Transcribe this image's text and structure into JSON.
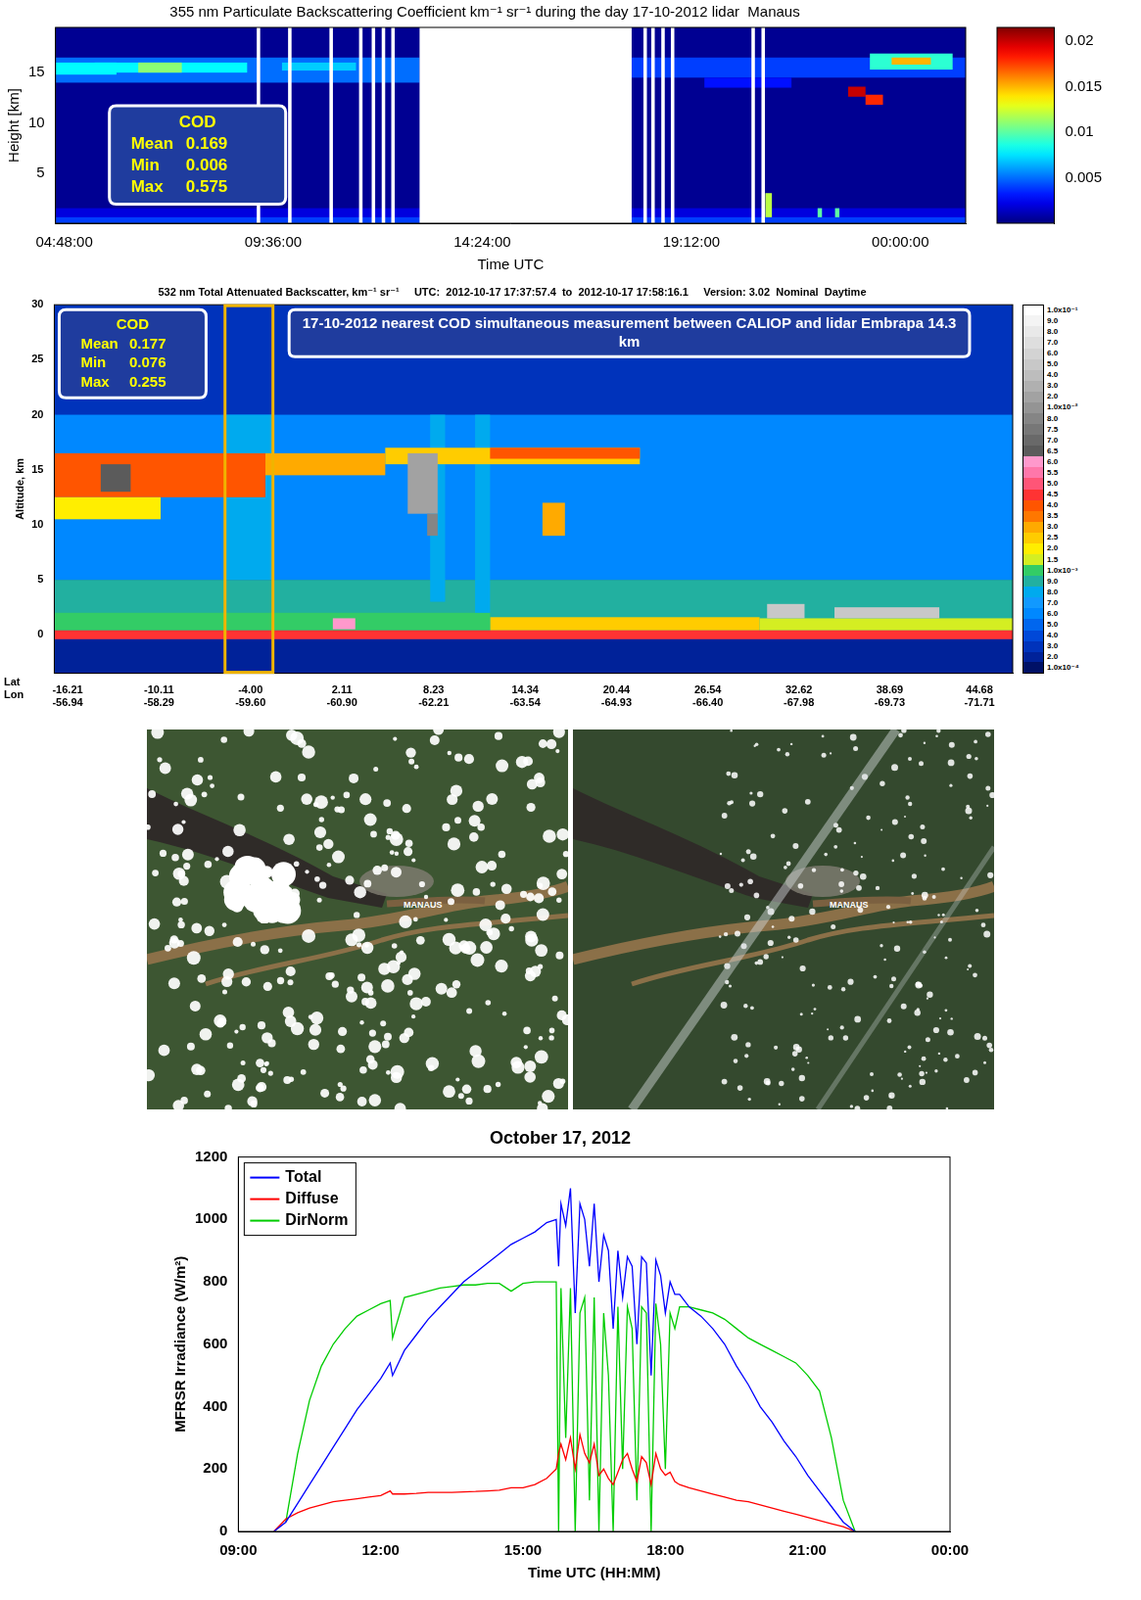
{
  "chart_data": [
    {
      "type": "heatmap",
      "title": "355 nm Particulate Backscattering Coefficient km⁻¹ sr⁻¹ during the day 17-10-2012 lidar  Manaus",
      "xlabel": "Time UTC",
      "ylabel": "Height [km]",
      "xlim": [
        4.6,
        25.5
      ],
      "xticks": [
        {
          "value": 4.8,
          "label": "04:48:00"
        },
        {
          "value": 9.6,
          "label": "09:36:00"
        },
        {
          "value": 14.4,
          "label": "14:24:00"
        },
        {
          "value": 19.2,
          "label": "19:12:00"
        },
        {
          "value": 24,
          "label": "00:00:00"
        }
      ],
      "ylim": [
        0,
        19.5
      ],
      "yticks": [
        5,
        10,
        15
      ],
      "grid": false,
      "cells": [
        {
          "x": [
            4.6,
            25.5
          ],
          "y": [
            0,
            19.5
          ],
          "value": 0.0004
        },
        {
          "x": [
            4.6,
            25.5
          ],
          "y": [
            0,
            1.5
          ],
          "value": 0.002
        },
        {
          "x": [
            4.6,
            25.5
          ],
          "y": [
            0,
            0.6
          ],
          "value": 0.004
        },
        {
          "x": [
            4.6,
            12.96
          ],
          "y": [
            14,
            16.5
          ],
          "value": 0.005
        },
        {
          "x": [
            4.6,
            6.0
          ],
          "y": [
            14.8,
            16
          ],
          "value": 0.008
        },
        {
          "x": [
            5.5,
            9
          ],
          "y": [
            15,
            16
          ],
          "value": 0.008
        },
        {
          "x": [
            6.5,
            7.5
          ],
          "y": [
            15,
            16
          ],
          "value": 0.011
        },
        {
          "x": [
            9.8,
            11.5
          ],
          "y": [
            15.2,
            16
          ],
          "value": 0.007
        },
        {
          "x": [
            17.83,
            25.5
          ],
          "y": [
            14.5,
            16.5
          ],
          "value": 0.004
        },
        {
          "x": [
            19.5,
            21.5
          ],
          "y": [
            13.5,
            14.5
          ],
          "value": 0.003
        },
        {
          "x": [
            23.3,
            25.2
          ],
          "y": [
            15.3,
            16.9
          ],
          "value": 0.009
        },
        {
          "x": [
            23.8,
            24.7
          ],
          "y": [
            15.8,
            16.5
          ],
          "value": 0.015
        },
        {
          "x": [
            22.8,
            23.2
          ],
          "y": [
            12.6,
            13.6
          ],
          "value": 0.02
        },
        {
          "x": [
            23.2,
            23.6
          ],
          "y": [
            11.8,
            12.8
          ],
          "value": 0.018
        },
        {
          "x": [
            20.9,
            21.05
          ],
          "y": [
            0.6,
            3
          ],
          "value": 0.012
        },
        {
          "x": [
            22.1,
            22.2
          ],
          "y": [
            0.6,
            1.5
          ],
          "value": 0.01
        },
        {
          "x": [
            22.5,
            22.6
          ],
          "y": [
            0.6,
            1.5
          ],
          "value": 0.01
        }
      ],
      "no_data": [
        [
          9.22,
          9.3
        ],
        [
          9.94,
          10.02
        ],
        [
          10.89,
          10.97
        ],
        [
          11.57,
          11.65
        ],
        [
          11.86,
          11.94
        ],
        [
          12.09,
          12.17
        ],
        [
          12.31,
          12.39
        ],
        [
          12.96,
          17.83
        ],
        [
          18.1,
          18.18
        ],
        [
          18.28,
          18.36
        ],
        [
          18.51,
          18.59
        ],
        [
          18.73,
          18.81
        ],
        [
          20.58,
          20.66
        ],
        [
          20.81,
          20.89
        ]
      ],
      "colorbar": {
        "range": [
          0,
          0.0215
        ],
        "ticks": [
          0.005,
          0.01,
          0.015,
          0.02
        ]
      },
      "annotation": {
        "title": "COD",
        "lines": [
          "Mean 0.169",
          "Min 0.006",
          "Max 0.575"
        ]
      }
    },
    {
      "type": "heatmap",
      "title": "532 nm Total Attenuated Backscatter, km⁻¹ sr⁻¹     UTC:  2012-10-17 17:37:57.4  to  2012-10-17 17:58:16.1     Version: 3.02  Nominal  Daytime",
      "ylabel": "Altitude, km",
      "tick_rows": [
        "Lat",
        "Lon"
      ],
      "xlim": [
        -17.1,
        46.9
      ],
      "xticks": [
        -16.21,
        -10.11,
        {
          "value": -4,
          "label": "-4.00"
        },
        2.11,
        8.23,
        14.34,
        20.44,
        26.54,
        32.62,
        38.69,
        44.68
      ],
      "lon_ticks": [
        -56.94,
        -58.29,
        {
          "value": -59.6,
          "label": "-59.60"
        },
        {
          "value": -60.9,
          "label": "-60.90"
        },
        -62.21,
        -63.54,
        -64.93,
        {
          "value": -66.4,
          "label": "-66.40"
        },
        -67.98,
        -69.73,
        -71.71
      ],
      "ylim": [
        -3.5,
        30
      ],
      "yticks": [
        0,
        5,
        10,
        15,
        20,
        25,
        30
      ],
      "grid": false,
      "cells": [
        {
          "x": [
            -17.1,
            46.9
          ],
          "y": [
            -3.5,
            30
          ],
          "value": 0.0003
        },
        {
          "x": [
            -17.1,
            46.9
          ],
          "y": [
            -3.5,
            -0.4
          ],
          "value": 0.0002
        },
        {
          "x": [
            -17.1,
            46.9
          ],
          "y": [
            0.4,
            5
          ],
          "value": 0.0009
        },
        {
          "x": [
            -17.1,
            46.9
          ],
          "y": [
            5,
            20
          ],
          "value": 0.0006
        },
        {
          "x": [
            12,
            30
          ],
          "y": [
            0.4,
            1.6
          ],
          "value": 0.0025
        },
        {
          "x": [
            -17.1,
            12
          ],
          "y": [
            0.4,
            2
          ],
          "value": 0.0012
        },
        {
          "x": [
            30,
            46.9
          ],
          "y": [
            0.4,
            1.5
          ],
          "value": 0.0015
        },
        {
          "x": [
            -17.1,
            46.9
          ],
          "y": [
            -0.4,
            0.4
          ],
          "value": 0.0045
        },
        {
          "x": [
            -5.7,
            -2.5
          ],
          "y": [
            5,
            20
          ],
          "value": 0.0008
        },
        {
          "x": [
            8,
            9
          ],
          "y": [
            3,
            20
          ],
          "value": 0.0008
        },
        {
          "x": [
            11,
            12
          ],
          "y": [
            2,
            20
          ],
          "value": 0.0008
        },
        {
          "x": [
            -17.1,
            -3
          ],
          "y": [
            12.5,
            16.5
          ],
          "value": 0.004
        },
        {
          "x": [
            -17.1,
            -10
          ],
          "y": [
            10.5,
            12.5
          ],
          "value": 0.002
        },
        {
          "x": [
            -14,
            -12
          ],
          "y": [
            13,
            15.5
          ],
          "value": 0.0065
        },
        {
          "x": [
            -3,
            5
          ],
          "y": [
            14.5,
            16.5
          ],
          "value": 0.003
        },
        {
          "x": [
            5,
            22
          ],
          "y": [
            15.5,
            17
          ],
          "value": 0.0025
        },
        {
          "x": [
            12,
            22
          ],
          "y": [
            16,
            17
          ],
          "value": 0.004
        },
        {
          "x": [
            6.5,
            8.5
          ],
          "y": [
            11,
            16.5
          ],
          "value": 0.02
        },
        {
          "x": [
            7.8,
            8.5
          ],
          "y": [
            9,
            11
          ],
          "value": 0.008
        },
        {
          "x": [
            15.5,
            17
          ],
          "y": [
            9,
            12
          ],
          "value": 0.003
        },
        {
          "x": [
            30.5,
            33
          ],
          "y": [
            1.5,
            2.8
          ],
          "value": 0.05
        },
        {
          "x": [
            35,
            42
          ],
          "y": [
            1.5,
            2.5
          ],
          "value": 0.05
        },
        {
          "x": [
            1.5,
            3
          ],
          "y": [
            0.5,
            1.5
          ],
          "value": 0.006
        }
      ],
      "highlight": [
        -5.7,
        -2.5
      ],
      "colorbar": {
        "ticks": [
          {
            "value": 0.1,
            "label": "1.0x10⁻¹"
          },
          {
            "value": 0.09,
            "label": "9.0"
          },
          {
            "value": 0.08,
            "label": "8.0"
          },
          {
            "value": 0.07,
            "label": "7.0"
          },
          {
            "value": 0.06,
            "label": "6.0"
          },
          {
            "value": 0.05,
            "label": "5.0"
          },
          {
            "value": 0.04,
            "label": "4.0"
          },
          {
            "value": 0.03,
            "label": "3.0"
          },
          {
            "value": 0.02,
            "label": "2.0"
          },
          {
            "value": 0.01,
            "label": "1.0x10⁻²"
          },
          {
            "value": 0.008,
            "label": "8.0"
          },
          {
            "value": 0.0075,
            "label": "7.5"
          },
          {
            "value": 0.007,
            "label": "7.0"
          },
          {
            "value": 0.0065,
            "label": "6.5"
          },
          {
            "value": 0.006,
            "label": "6.0"
          },
          {
            "value": 0.0055,
            "label": "5.5"
          },
          {
            "value": 0.005,
            "label": "5.0"
          },
          {
            "value": 0.0045,
            "label": "4.5"
          },
          {
            "value": 0.004,
            "label": "4.0"
          },
          {
            "value": 0.0035,
            "label": "3.5"
          },
          {
            "value": 0.003,
            "label": "3.0"
          },
          {
            "value": 0.0025,
            "label": "2.5"
          },
          {
            "value": 0.002,
            "label": "2.0"
          },
          {
            "value": 0.0015,
            "label": "1.5"
          },
          {
            "value": 0.001,
            "label": "1.0x10⁻³"
          },
          {
            "value": 0.0009,
            "label": "9.0"
          },
          {
            "value": 0.0008,
            "label": "8.0"
          },
          {
            "value": 0.0007,
            "label": "7.0"
          },
          {
            "value": 0.0006,
            "label": "6.0"
          },
          {
            "value": 0.0005,
            "label": "5.0"
          },
          {
            "value": 0.0004,
            "label": "4.0"
          },
          {
            "value": 0.0003,
            "label": "3.0"
          },
          {
            "value": 0.0002,
            "label": "2.0"
          },
          {
            "value": 0.0001,
            "label": "1.0x10⁻⁴"
          }
        ]
      },
      "annotation": {
        "title": "COD",
        "lines": [
          "Mean 0.177",
          "Min 0.076",
          "Max 0.255"
        ]
      },
      "text_box": "17-10-2012 nearest COD simultaneous measurement between CALIOP and lidar Embrapa 14.3 km"
    },
    {
      "type": "image",
      "images": [
        {
          "label": "MANAUS"
        },
        {
          "label": "MANAUS"
        }
      ]
    },
    {
      "type": "line",
      "title": "October 17, 2012",
      "xlabel": "Time UTC (HH:MM)",
      "ylabel": "MFRSR Irradiance (W/m²)",
      "x": [
        9.75,
        10,
        10.25,
        10.5,
        10.75,
        11,
        11.25,
        11.5,
        11.75,
        12,
        12.2,
        12.25,
        12.5,
        12.75,
        13,
        13.25,
        13.5,
        13.75,
        14,
        14.25,
        14.5,
        14.75,
        15,
        15.25,
        15.5,
        15.7,
        15.75,
        15.8,
        15.9,
        16,
        16.1,
        16.2,
        16.3,
        16.4,
        16.5,
        16.6,
        16.7,
        16.8,
        16.9,
        17,
        17.1,
        17.2,
        17.3,
        17.4,
        17.5,
        17.6,
        17.7,
        17.8,
        17.9,
        18,
        18.1,
        18.2,
        18.3,
        18.5,
        18.75,
        19,
        19.25,
        19.5,
        19.75,
        20,
        20.25,
        20.5,
        20.75,
        21,
        21.25,
        21.5,
        21.75,
        22
      ],
      "series": [
        {
          "name": "Total",
          "color": "#0000ff",
          "values": [
            0,
            30,
            90,
            150,
            210,
            270,
            330,
            390,
            440,
            490,
            540,
            500,
            580,
            630,
            680,
            720,
            760,
            800,
            830,
            860,
            890,
            920,
            940,
            960,
            990,
            1000,
            850,
            1050,
            980,
            1100,
            700,
            1050,
            1000,
            850,
            1050,
            800,
            950,
            900,
            650,
            900,
            750,
            880,
            850,
            600,
            880,
            860,
            500,
            870,
            820,
            700,
            800,
            760,
            760,
            720,
            690,
            650,
            600,
            530,
            470,
            400,
            350,
            290,
            240,
            180,
            130,
            80,
            30,
            0
          ]
        },
        {
          "name": "Diffuse",
          "color": "#ff0000",
          "values": [
            0,
            40,
            60,
            75,
            85,
            95,
            100,
            105,
            110,
            115,
            130,
            120,
            120,
            122,
            125,
            125,
            125,
            127,
            128,
            130,
            132,
            140,
            140,
            150,
            170,
            200,
            250,
            280,
            230,
            300,
            200,
            310,
            250,
            220,
            280,
            180,
            200,
            170,
            150,
            190,
            230,
            250,
            200,
            160,
            240,
            220,
            150,
            250,
            200,
            180,
            190,
            160,
            150,
            140,
            130,
            120,
            110,
            100,
            95,
            85,
            75,
            65,
            55,
            45,
            35,
            25,
            15,
            0
          ]
        },
        {
          "name": "DirNorm",
          "color": "#00cc00",
          "values": [
            null,
            30,
            250,
            420,
            530,
            600,
            650,
            690,
            710,
            730,
            740,
            620,
            750,
            760,
            770,
            780,
            785,
            790,
            790,
            795,
            795,
            770,
            795,
            800,
            800,
            800,
            0,
            780,
            300,
            780,
            0,
            700,
            750,
            100,
            750,
            0,
            700,
            500,
            0,
            720,
            200,
            720,
            650,
            100,
            720,
            700,
            0,
            730,
            600,
            200,
            700,
            650,
            720,
            720,
            710,
            700,
            680,
            650,
            620,
            600,
            580,
            560,
            540,
            500,
            450,
            300,
            100,
            0
          ]
        }
      ],
      "xlim": [
        9,
        24
      ],
      "xticks": [
        {
          "value": 9,
          "label": "09:00"
        },
        {
          "value": 12,
          "label": "12:00"
        },
        {
          "value": 15,
          "label": "15:00"
        },
        {
          "value": 18,
          "label": "18:00"
        },
        {
          "value": 21,
          "label": "21:00"
        },
        {
          "value": 24,
          "label": "00:00"
        }
      ],
      "ylim": [
        0,
        1200
      ],
      "yticks": [
        0,
        200,
        400,
        600,
        800,
        1000,
        1200
      ],
      "legend": "upper left",
      "grid": false
    }
  ]
}
